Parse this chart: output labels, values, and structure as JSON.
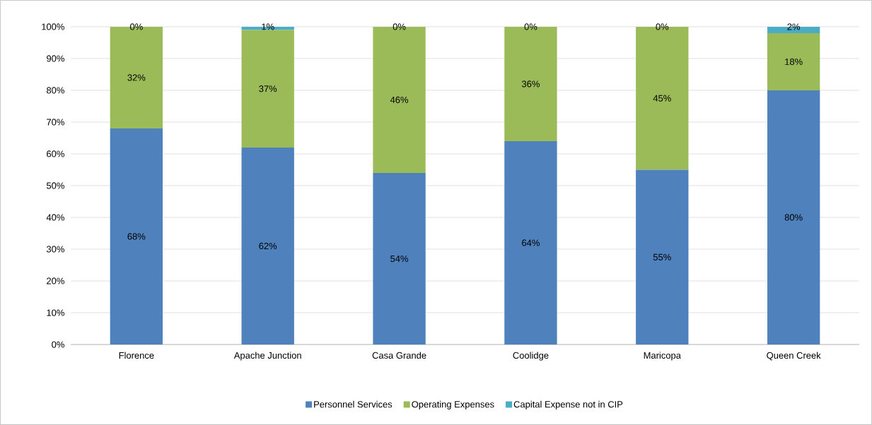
{
  "chart_data": {
    "type": "bar",
    "stacked": true,
    "categories": [
      "Florence",
      "Apache Junction",
      "Casa Grande",
      "Coolidge",
      "Maricopa",
      "Queen Creek"
    ],
    "series": [
      {
        "name": "Personnel Services",
        "color": "#4f81bd",
        "values": [
          68,
          62,
          54,
          64,
          55,
          80
        ],
        "value_labels": [
          "68%",
          "62%",
          "54%",
          "64%",
          "55%",
          "80%"
        ]
      },
      {
        "name": "Operating Expenses",
        "color": "#9bbb59",
        "values": [
          32,
          37,
          46,
          36,
          45,
          18
        ],
        "value_labels": [
          "32%",
          "37%",
          "46%",
          "36%",
          "45%",
          "18%"
        ]
      },
      {
        "name": "Capital Expense not in CIP",
        "color": "#4bacc6",
        "values": [
          0,
          1,
          0,
          0,
          0,
          2
        ],
        "value_labels": [
          "0%",
          "1%",
          "0%",
          "0%",
          "0%",
          "2%"
        ]
      }
    ],
    "ylim": [
      0,
      100
    ],
    "yticks": [
      {
        "value": 0,
        "label": "0%"
      },
      {
        "value": 10,
        "label": "10%"
      },
      {
        "value": 20,
        "label": "20%"
      },
      {
        "value": 30,
        "label": "30%"
      },
      {
        "value": 40,
        "label": "40%"
      },
      {
        "value": 50,
        "label": "50%"
      },
      {
        "value": 60,
        "label": "60%"
      },
      {
        "value": 70,
        "label": "70%"
      },
      {
        "value": 80,
        "label": "80%"
      },
      {
        "value": 90,
        "label": "90%"
      },
      {
        "value": 100,
        "label": "100%"
      }
    ],
    "grid": "y",
    "legend": "bottom"
  }
}
